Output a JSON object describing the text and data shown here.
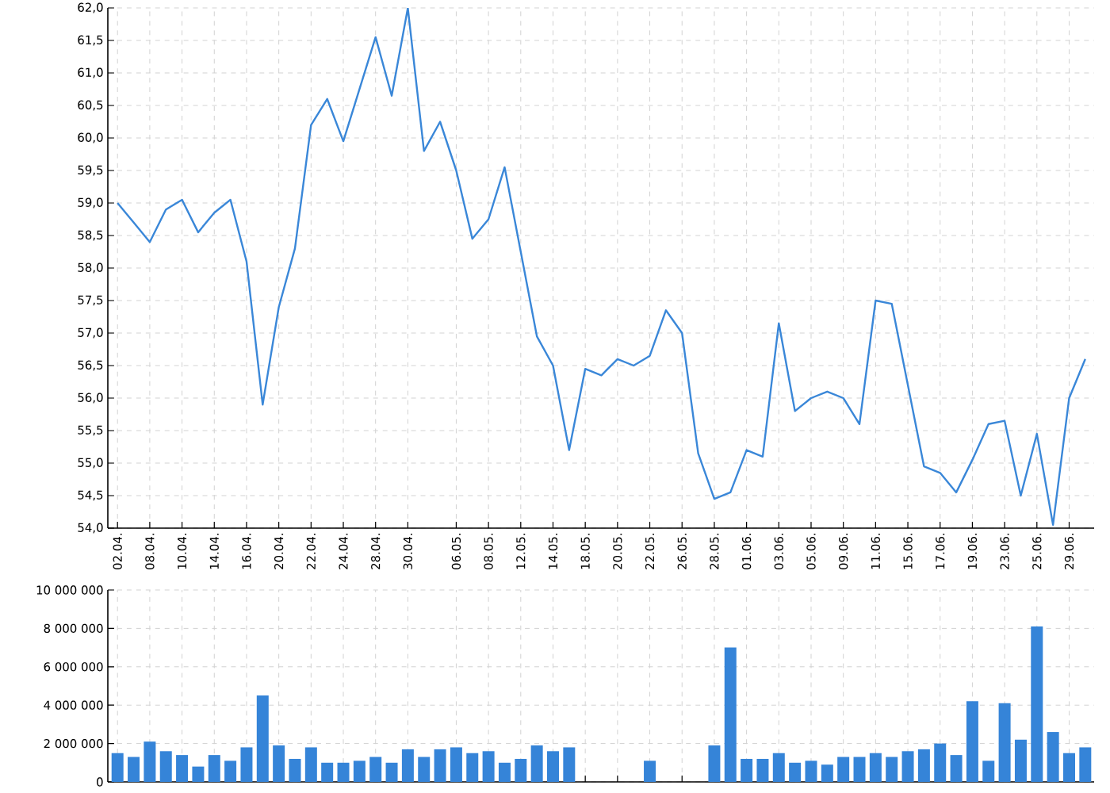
{
  "chart_data": [
    {
      "type": "line",
      "categories": [
        "02.04.",
        null,
        "08.04.",
        null,
        "10.04.",
        null,
        "14.04.",
        null,
        "16.04.",
        null,
        "20.04.",
        null,
        "22.04.",
        null,
        "24.04.",
        null,
        "28.04.",
        null,
        "30.04.",
        null,
        null,
        "06.05.",
        null,
        "08.05.",
        null,
        "12.05.",
        null,
        "14.05.",
        null,
        "18.05.",
        null,
        "20.05.",
        null,
        "22.05.",
        null,
        "26.05.",
        null,
        "28.05.",
        null,
        "01.06.",
        null,
        "03.06.",
        null,
        "05.06.",
        null,
        "09.06.",
        null,
        "11.06.",
        null,
        "15.06.",
        null,
        "17.06.",
        null,
        "19.06.",
        null,
        "23.06.",
        null,
        "25.06.",
        null,
        "29.06.",
        null
      ],
      "values": [
        59.0,
        58.7,
        58.4,
        58.9,
        59.05,
        58.55,
        58.85,
        59.05,
        58.1,
        55.9,
        57.4,
        58.3,
        60.2,
        60.6,
        59.95,
        60.75,
        61.55,
        60.65,
        62.0,
        59.8,
        60.25,
        59.5,
        58.45,
        58.75,
        59.55,
        58.25,
        56.95,
        56.5,
        55.2,
        56.45,
        56.35,
        56.6,
        56.5,
        56.65,
        57.35,
        57.0,
        55.15,
        54.45,
        54.55,
        55.2,
        55.1,
        57.15,
        55.8,
        56.0,
        56.1,
        56.0,
        55.6,
        57.5,
        57.45,
        56.2,
        54.95,
        54.85,
        54.55,
        55.05,
        55.6,
        55.65,
        54.5,
        55.45,
        54.05,
        56.0,
        56.6
      ],
      "color": "#3a87d8",
      "grid": true,
      "ylim": [
        54,
        62
      ],
      "yticks": [
        {
          "value": 54,
          "label": "54,0"
        },
        {
          "value": 54.5,
          "label": "54,5"
        },
        {
          "value": 55,
          "label": "55,0"
        },
        {
          "value": 55.5,
          "label": "55,5"
        },
        {
          "value": 56,
          "label": "56,0"
        },
        {
          "value": 56.5,
          "label": "56,5"
        },
        {
          "value": 57,
          "label": "57,0"
        },
        {
          "value": 57.5,
          "label": "57,5"
        },
        {
          "value": 58,
          "label": "58,0"
        },
        {
          "value": 58.5,
          "label": "58,5"
        },
        {
          "value": 59,
          "label": "59,0"
        },
        {
          "value": 59.5,
          "label": "59,5"
        },
        {
          "value": 60,
          "label": "60,0"
        },
        {
          "value": 60.5,
          "label": "60,5"
        },
        {
          "value": 61,
          "label": "61,0"
        },
        {
          "value": 61.5,
          "label": "61,5"
        },
        {
          "value": 62,
          "label": "62,0"
        }
      ]
    },
    {
      "type": "bar",
      "categories": [
        "02.04.",
        null,
        "08.04.",
        null,
        "10.04.",
        null,
        "14.04.",
        null,
        "16.04.",
        null,
        "20.04.",
        null,
        "22.04.",
        null,
        "24.04.",
        null,
        "28.04.",
        null,
        "30.04.",
        null,
        null,
        "06.05.",
        null,
        "08.05.",
        null,
        "12.05.",
        null,
        "14.05.",
        null,
        "18.05.",
        null,
        "20.05.",
        null,
        "22.05.",
        null,
        "26.05.",
        null,
        "28.05.",
        null,
        "01.06.",
        null,
        "03.06.",
        null,
        "05.06.",
        null,
        "09.06.",
        null,
        "11.06.",
        null,
        "15.06.",
        null,
        "17.06.",
        null,
        "19.06.",
        null,
        "23.06.",
        null,
        "25.06.",
        null,
        "29.06.",
        null
      ],
      "values": [
        1500000,
        1300000,
        2100000,
        1600000,
        1400000,
        800000,
        1400000,
        1100000,
        1800000,
        4500000,
        1900000,
        1200000,
        1800000,
        1000000,
        1000000,
        1100000,
        1300000,
        1000000,
        1700000,
        1300000,
        1700000,
        1800000,
        1500000,
        1600000,
        1000000,
        1200000,
        1900000,
        1600000,
        1800000,
        null,
        null,
        null,
        null,
        1100000,
        null,
        null,
        null,
        1900000,
        7000000,
        1200000,
        1200000,
        1500000,
        1000000,
        1100000,
        900000,
        1300000,
        1300000,
        1500000,
        1300000,
        1600000,
        1700000,
        2000000,
        1400000,
        4200000,
        1100000,
        4100000,
        2200000,
        8100000,
        2600000,
        1500000,
        1800000
      ],
      "color": "#3584d8",
      "grid": true,
      "ylim": [
        0,
        10000000
      ],
      "tick_labels": "y",
      "yticks": [
        {
          "value": 0,
          "label": "0"
        },
        {
          "value": 2000000,
          "label": "2 000 000"
        },
        {
          "value": 4000000,
          "label": "4 000 000"
        },
        {
          "value": 6000000,
          "label": "6 000 000"
        },
        {
          "value": 8000000,
          "label": "8 000 000"
        },
        {
          "value": 10000000,
          "label": "10 000 000"
        }
      ]
    }
  ]
}
